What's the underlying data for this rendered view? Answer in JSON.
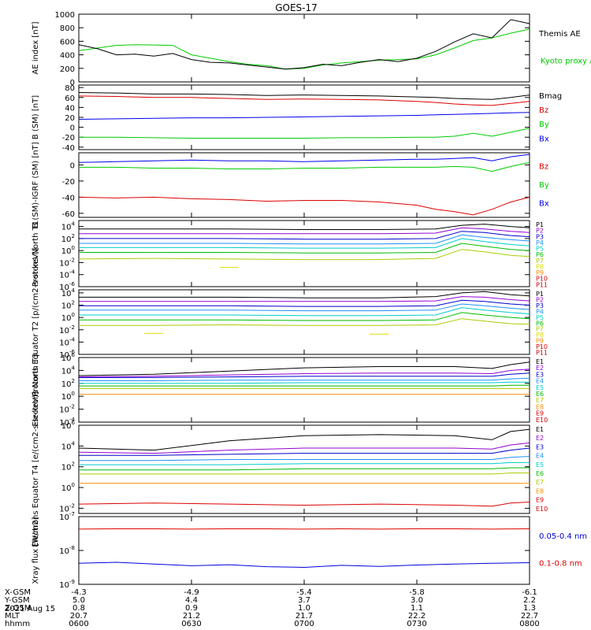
{
  "title": "GOES-17",
  "chart_data": [
    {
      "type": "line",
      "panel": "ae",
      "ylabel": "AE index [nT]",
      "ylim": [
        0,
        1000
      ],
      "yscale": "linear",
      "yticks": [
        0,
        200,
        400,
        600,
        800,
        1000
      ],
      "ytick_labels": [
        "0",
        "200",
        "400",
        "600",
        "800",
        "1000"
      ],
      "x": [
        0,
        5,
        10,
        15,
        20,
        25,
        30,
        35,
        40,
        45,
        50,
        55,
        60,
        65,
        70,
        75,
        80,
        85,
        90,
        95,
        100,
        105,
        110,
        115,
        120
      ],
      "series": [
        {
          "name": "Kyoto proxy AE",
          "color": "#00cc00",
          "values": [
            460,
            500,
            540,
            550,
            545,
            540,
            400,
            350,
            300,
            260,
            240,
            190,
            200,
            250,
            280,
            300,
            320,
            330,
            340,
            400,
            500,
            610,
            650,
            720,
            780
          ]
        },
        {
          "name": "Themis AE",
          "color": "#000000",
          "values": [
            550,
            490,
            400,
            410,
            380,
            420,
            330,
            290,
            280,
            250,
            220,
            190,
            210,
            260,
            240,
            290,
            330,
            300,
            350,
            450,
            590,
            710,
            650,
            920,
            860
          ]
        }
      ]
    },
    {
      "type": "line",
      "panel": "b_sm",
      "ylabel": "B (SM) [nT]",
      "ylim": [
        -45,
        85
      ],
      "yscale": "linear",
      "yticks": [
        -40,
        -20,
        0,
        20,
        40,
        60,
        80
      ],
      "ytick_labels": [
        "-40",
        "-20",
        "0",
        "20",
        "40",
        "60",
        "80"
      ],
      "x": [
        0,
        10,
        20,
        30,
        40,
        50,
        60,
        70,
        80,
        90,
        95,
        100,
        105,
        110,
        115,
        120
      ],
      "series": [
        {
          "name": "Bx",
          "color": "#0000ee",
          "values": [
            16,
            17,
            18,
            19,
            19,
            20,
            21,
            22,
            23,
            24,
            25,
            26,
            27,
            28,
            29,
            30
          ]
        },
        {
          "name": "By",
          "color": "#00cc00",
          "values": [
            -20,
            -20,
            -21,
            -22,
            -22,
            -22,
            -22,
            -21,
            -21,
            -20,
            -20,
            -18,
            -12,
            -18,
            -10,
            -2
          ]
        },
        {
          "name": "Bz",
          "color": "#dd0000",
          "values": [
            63,
            62,
            60,
            60,
            58,
            56,
            57,
            56,
            55,
            52,
            50,
            47,
            45,
            44,
            48,
            52
          ]
        },
        {
          "name": "Bmag",
          "color": "#000000",
          "values": [
            70,
            69,
            67,
            67,
            66,
            64,
            65,
            64,
            63,
            61,
            60,
            58,
            57,
            56,
            60,
            65
          ]
        }
      ]
    },
    {
      "type": "line",
      "panel": "b_igrf",
      "ylabel": "B (SM)-IGRF (SM) [nT]",
      "ylim": [
        -65,
        15
      ],
      "yscale": "linear",
      "yticks": [
        -60,
        -40,
        -20,
        0
      ],
      "ytick_labels": [
        "-60",
        "-40",
        "-20",
        "0"
      ],
      "x": [
        0,
        10,
        20,
        30,
        40,
        50,
        60,
        70,
        80,
        90,
        95,
        100,
        105,
        110,
        115,
        120
      ],
      "series": [
        {
          "name": "Bx",
          "color": "#0000ee",
          "values": [
            3,
            4,
            5,
            6,
            5,
            5,
            4,
            5,
            6,
            7,
            7,
            8,
            9,
            5,
            10,
            13
          ]
        },
        {
          "name": "By",
          "color": "#00cc00",
          "values": [
            -3,
            -3,
            -4,
            -4,
            -5,
            -5,
            -4,
            -4,
            -3,
            -3,
            -3,
            -2,
            -3,
            -8,
            -2,
            3
          ]
        },
        {
          "name": "Bz",
          "color": "#dd0000",
          "values": [
            -40,
            -41,
            -40,
            -42,
            -43,
            -45,
            -44,
            -44,
            -46,
            -50,
            -55,
            -58,
            -62,
            -55,
            -46,
            -40
          ]
        }
      ]
    },
    {
      "type": "line",
      "panel": "protons_t1",
      "ylabel": "Protons North T1",
      "ylim": [
        -6,
        5
      ],
      "yscale": "log10",
      "yticks": [
        -6,
        -4,
        -2,
        0,
        2,
        4
      ],
      "ytick_labels": [
        "10^-6",
        "10^-4",
        "10^-2",
        "10^0",
        "10^2",
        "10^4"
      ],
      "x": [
        0,
        20,
        40,
        60,
        80,
        95,
        102,
        108,
        115,
        120
      ],
      "series": [
        {
          "name": "P1",
          "color": "#000000",
          "values": [
            3.6,
            3.6,
            3.6,
            3.5,
            3.5,
            3.6,
            4.2,
            4.4,
            4.0,
            3.8
          ]
        },
        {
          "name": "P2",
          "color": "#9400d3",
          "values": [
            2.8,
            2.8,
            2.8,
            2.8,
            2.8,
            2.9,
            3.8,
            3.6,
            3.2,
            3.0
          ]
        },
        {
          "name": "P3",
          "color": "#0000cc",
          "values": [
            2.0,
            2.0,
            2.0,
            1.9,
            1.9,
            2.0,
            3.2,
            3.0,
            2.5,
            2.3
          ]
        },
        {
          "name": "P4",
          "color": "#1e90ff",
          "values": [
            1.2,
            1.2,
            1.2,
            1.1,
            1.1,
            1.2,
            2.6,
            2.2,
            1.8,
            1.6
          ]
        },
        {
          "name": "P5",
          "color": "#00cccc",
          "values": [
            0.5,
            0.5,
            0.5,
            0.4,
            0.4,
            0.5,
            2.0,
            1.5,
            1.0,
            0.8
          ]
        },
        {
          "name": "P6",
          "color": "#00bb00",
          "values": [
            -0.3,
            -0.3,
            -0.3,
            -0.4,
            -0.4,
            -0.3,
            1.2,
            0.7,
            0.2,
            0.0
          ]
        },
        {
          "name": "P7",
          "color": "#aacc00",
          "values": [
            -1.4,
            -1.3,
            -1.4,
            -1.5,
            -1.5,
            -1.3,
            0.2,
            -0.2,
            -0.8,
            -1.0
          ]
        },
        {
          "name": "P8",
          "color": "#dddd00",
          "values": [
            null,
            null,
            -2.8,
            null,
            null,
            null,
            null,
            null,
            null,
            null
          ]
        }
      ],
      "legend": [
        "P1",
        "P2",
        "P3",
        "P4",
        "P5",
        "P6",
        "P7",
        "P8",
        "P9",
        "P10",
        "P11"
      ]
    },
    {
      "type": "line",
      "panel": "protons_t2",
      "ylabel": "Protons Equator T2 [p/(cm2-s-sr-keV)]",
      "ylim": [
        -6,
        4.5
      ],
      "yscale": "log10",
      "yticks": [
        -6,
        -4,
        -2,
        0,
        2,
        4
      ],
      "ytick_labels": [
        "10^-6",
        "10^-4",
        "10^-2",
        "10^0",
        "10^2",
        "10^4"
      ],
      "x": [
        0,
        20,
        40,
        60,
        80,
        95,
        102,
        108,
        115,
        120
      ],
      "series": [
        {
          "name": "P1",
          "color": "#000000",
          "values": [
            3.3,
            3.3,
            3.3,
            3.2,
            3.2,
            3.4,
            4.0,
            4.2,
            3.7,
            3.5
          ]
        },
        {
          "name": "P2",
          "color": "#9400d3",
          "values": [
            2.6,
            2.6,
            2.6,
            2.6,
            2.6,
            2.7,
            3.4,
            3.3,
            2.9,
            2.7
          ]
        },
        {
          "name": "P3",
          "color": "#0000cc",
          "values": [
            1.9,
            1.9,
            1.9,
            1.8,
            1.8,
            1.9,
            2.8,
            2.6,
            2.2,
            2.0
          ]
        },
        {
          "name": "P4",
          "color": "#1e90ff",
          "values": [
            1.2,
            1.2,
            1.2,
            1.1,
            1.1,
            1.2,
            2.2,
            1.9,
            1.5,
            1.3
          ]
        },
        {
          "name": "P5",
          "color": "#00cccc",
          "values": [
            0.4,
            0.4,
            0.4,
            0.3,
            0.3,
            0.4,
            1.6,
            1.2,
            0.8,
            0.6
          ]
        },
        {
          "name": "P6",
          "color": "#00bb00",
          "values": [
            -0.4,
            -0.4,
            -0.4,
            -0.5,
            -0.5,
            -0.4,
            0.8,
            0.4,
            0.0,
            -0.2
          ]
        },
        {
          "name": "P7",
          "color": "#aacc00",
          "values": [
            -1.3,
            -1.3,
            -1.2,
            -1.3,
            -1.3,
            -1.2,
            -0.2,
            -0.6,
            -1.0,
            -1.1
          ]
        },
        {
          "name": "P8",
          "color": "#dddd00",
          "values": [
            null,
            -2.6,
            null,
            null,
            -2.7,
            null,
            null,
            null,
            null,
            null
          ]
        }
      ],
      "legend": [
        "P1",
        "P2",
        "P3",
        "P4",
        "P5",
        "P6",
        "P7",
        "P8",
        "P9",
        "P10",
        "P11"
      ]
    },
    {
      "type": "line",
      "panel": "electrons_t3",
      "ylabel": "Electrons North T3",
      "ylim": [
        -4,
        6
      ],
      "yscale": "log10",
      "yticks": [
        -4,
        -2,
        0,
        2,
        4,
        6
      ],
      "ytick_labels": [
        "10^-4",
        "10^-2",
        "10^0",
        "10^2",
        "10^4",
        "10^6"
      ],
      "x": [
        0,
        20,
        40,
        60,
        80,
        100,
        110,
        115,
        120
      ],
      "series": [
        {
          "name": "E1",
          "color": "#000000",
          "values": [
            3.2,
            3.4,
            3.9,
            4.4,
            4.6,
            4.6,
            4.3,
            4.9,
            5.3
          ]
        },
        {
          "name": "E2",
          "color": "#9400d3",
          "values": [
            3.0,
            3.1,
            3.3,
            3.5,
            3.6,
            3.6,
            3.5,
            4.0,
            4.2
          ]
        },
        {
          "name": "E3",
          "color": "#0000cc",
          "values": [
            2.9,
            2.9,
            3.0,
            3.1,
            3.1,
            3.1,
            3.1,
            3.4,
            3.6
          ]
        },
        {
          "name": "E4",
          "color": "#1e90ff",
          "values": [
            2.4,
            2.4,
            2.5,
            2.5,
            2.5,
            2.5,
            2.5,
            2.7,
            2.8
          ]
        },
        {
          "name": "E5",
          "color": "#00cccc",
          "values": [
            2.0,
            2.0,
            2.0,
            2.1,
            2.1,
            2.1,
            2.1,
            2.2,
            2.2
          ]
        },
        {
          "name": "E6",
          "color": "#00bb00",
          "values": [
            1.6,
            1.6,
            1.6,
            1.6,
            1.6,
            1.6,
            1.6,
            1.7,
            1.7
          ]
        },
        {
          "name": "E7",
          "color": "#aacc00",
          "values": [
            1.2,
            1.2,
            1.2,
            1.2,
            1.2,
            1.2,
            1.2,
            1.2,
            1.2
          ]
        },
        {
          "name": "E8",
          "color": "#ff8c00",
          "values": [
            0.3,
            0.3,
            0.3,
            0.3,
            0.3,
            0.3,
            0.3,
            0.3,
            0.3
          ]
        }
      ],
      "legend": [
        "E1",
        "E2",
        "E3",
        "E4",
        "E5",
        "E6",
        "E7",
        "E8",
        "E9",
        "E10"
      ]
    },
    {
      "type": "line",
      "panel": "electrons_t4",
      "ylabel": "Electrons Equator T4 [e/(cm2-s-sr-keV)]",
      "ylim": [
        -2.5,
        6
      ],
      "yscale": "log10",
      "yticks": [
        -2,
        0,
        2,
        4,
        6
      ],
      "ytick_labels": [
        "10^-2",
        "10^0",
        "10^2",
        "10^4",
        "10^6"
      ],
      "x": [
        0,
        20,
        40,
        60,
        80,
        100,
        110,
        115,
        120
      ],
      "series": [
        {
          "name": "E1",
          "color": "#000000",
          "values": [
            3.8,
            3.6,
            4.5,
            5.0,
            5.1,
            5.0,
            4.6,
            5.4,
            5.6
          ]
        },
        {
          "name": "E2",
          "color": "#9400d3",
          "values": [
            3.4,
            3.3,
            3.6,
            3.8,
            3.8,
            3.8,
            3.7,
            4.1,
            4.3
          ]
        },
        {
          "name": "E3",
          "color": "#0000cc",
          "values": [
            3.1,
            3.1,
            3.2,
            3.3,
            3.3,
            3.3,
            3.3,
            3.6,
            3.8
          ]
        },
        {
          "name": "E4",
          "color": "#1e90ff",
          "values": [
            2.6,
            2.6,
            2.7,
            2.7,
            2.7,
            2.7,
            2.7,
            2.9,
            3.0
          ]
        },
        {
          "name": "E5",
          "color": "#00cccc",
          "values": [
            2.2,
            2.2,
            2.2,
            2.3,
            2.3,
            2.3,
            2.3,
            2.4,
            2.4
          ]
        },
        {
          "name": "E6",
          "color": "#00bb00",
          "values": [
            1.7,
            1.7,
            1.7,
            1.8,
            1.8,
            1.8,
            1.8,
            1.9,
            1.9
          ]
        },
        {
          "name": "E7",
          "color": "#aacc00",
          "values": [
            1.3,
            1.3,
            1.3,
            1.3,
            1.3,
            1.3,
            1.3,
            1.4,
            1.4
          ]
        },
        {
          "name": "E8",
          "color": "#ff8c00",
          "values": [
            0.4,
            0.4,
            0.4,
            0.4,
            0.4,
            0.4,
            0.4,
            0.4,
            0.4
          ]
        },
        {
          "name": "E9",
          "color": "#dd0000",
          "values": [
            -1.6,
            -1.5,
            -1.6,
            -1.7,
            -1.6,
            -1.7,
            -1.8,
            -1.5,
            -1.4
          ]
        }
      ],
      "legend": [
        "E1",
        "E2",
        "E3",
        "E4",
        "E5",
        "E6",
        "E7",
        "E8",
        "E9",
        "E10"
      ]
    },
    {
      "type": "line",
      "panel": "xray",
      "ylabel": "Xray flux [W/m2]",
      "ylim": [
        -9,
        -7
      ],
      "yscale": "log10",
      "yticks": [
        -9,
        -8,
        -7
      ],
      "ytick_labels": [
        "10^-9",
        "10^-8",
        "10^-7"
      ],
      "x": [
        0,
        10,
        20,
        30,
        40,
        50,
        60,
        70,
        80,
        90,
        100,
        110,
        120
      ],
      "series": [
        {
          "name": "0.1-0.8 nm",
          "color": "#dd0000",
          "values": [
            -7.37,
            -7.36,
            -7.36,
            -7.37,
            -7.36,
            -7.36,
            -7.37,
            -7.36,
            -7.37,
            -7.36,
            -7.36,
            -7.37,
            -7.36
          ]
        },
        {
          "name": "0.05-0.4 nm",
          "color": "#0000dd",
          "values": [
            -8.38,
            -8.35,
            -8.4,
            -8.45,
            -8.42,
            -8.48,
            -8.5,
            -8.44,
            -8.47,
            -8.43,
            -8.4,
            -8.38,
            -8.36
          ]
        }
      ]
    }
  ],
  "xaxis": {
    "xlim": [
      0,
      120
    ],
    "xticks": [
      0,
      30,
      60,
      90,
      120
    ],
    "rows": [
      {
        "label": "X-GSM",
        "values": [
          "-4.3",
          "-4.9",
          "-5.4",
          "-5.8",
          "-6.1"
        ]
      },
      {
        "label": "Y-GSM",
        "values": [
          "5.0",
          "4.4",
          "3.7",
          "3.0",
          "2.2"
        ]
      },
      {
        "label": "Z-GSM",
        "values": [
          "0.8",
          "0.9",
          "1.0",
          "1.1",
          "1.3"
        ]
      },
      {
        "label": "MLT",
        "values": [
          "20.7",
          "21.2",
          "21.7",
          "22.2",
          "22.7"
        ]
      },
      {
        "label": "hhmm",
        "values": [
          "0600",
          "0630",
          "0700",
          "0730",
          "0800"
        ]
      }
    ],
    "date": "2021 Aug 15"
  }
}
